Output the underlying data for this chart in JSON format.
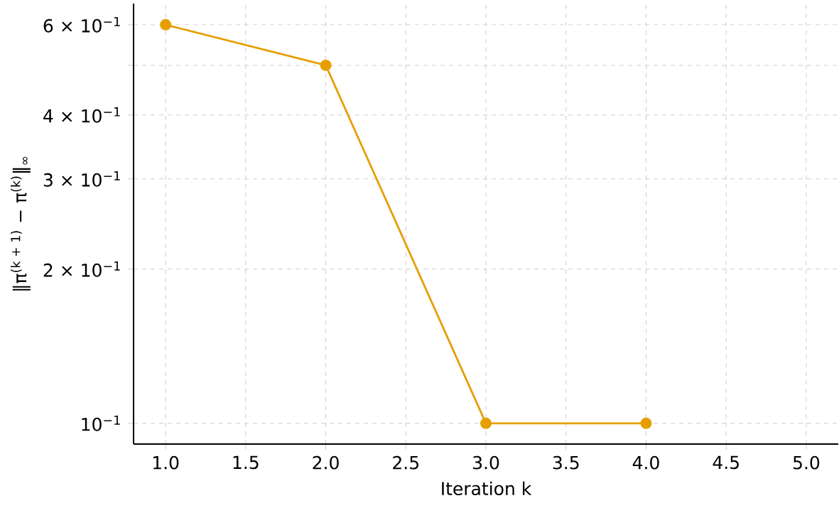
{
  "chart_data": {
    "type": "line",
    "xlabel": "Iteration k",
    "ylabel": "‖π$^{(k + 1)}$ − π$^{(k)}$‖$_{∞}$",
    "x": [
      1,
      2,
      3,
      4
    ],
    "values": [
      0.6,
      0.5,
      0.1,
      0.1
    ],
    "color": "#e69f00",
    "marker": "circle",
    "line_style": "solid",
    "log": "y",
    "grid": true,
    "xlim": [
      0.8,
      5.2
    ],
    "xticks": [
      {
        "value": 1,
        "label": "1.0"
      },
      {
        "value": 1.5,
        "label": "1.5"
      },
      {
        "value": 2,
        "label": "2.0"
      },
      {
        "value": 2.5,
        "label": "2.5"
      },
      {
        "value": 3,
        "label": "3.0"
      },
      {
        "value": 3.5,
        "label": "3.5"
      },
      {
        "value": 4,
        "label": "4.0"
      },
      {
        "value": 4.5,
        "label": "4.5"
      },
      {
        "value": 5,
        "label": "5.0"
      }
    ],
    "ylim": [
      0.0911,
      0.66
    ],
    "yticks": [
      {
        "value": 0.1,
        "label": "10$^{−1}$"
      },
      {
        "value": 0.2,
        "label": "2 × 10$^{−1}$"
      },
      {
        "value": 0.3,
        "label": "3 × 10$^{−1}$"
      },
      {
        "value": 0.4,
        "label": "4 × 10$^{−1}$"
      },
      {
        "value": 0.5,
        "label": null
      },
      {
        "value": 0.6,
        "label": "6 × 10$^{−1}$"
      }
    ]
  }
}
